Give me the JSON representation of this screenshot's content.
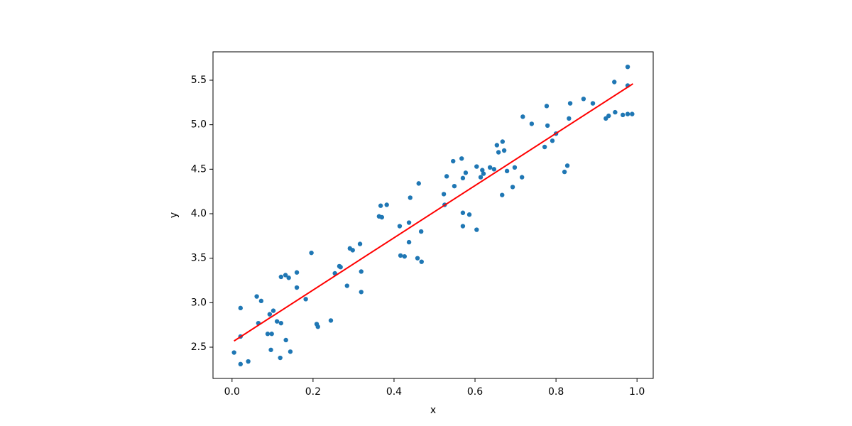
{
  "chart_data": {
    "type": "scatter",
    "x_label": "x",
    "y_label": "y",
    "xlim": [
      -0.047,
      1.04
    ],
    "ylim": [
      2.149,
      5.819
    ],
    "xticks": [
      {
        "value": 0,
        "label": "0.0"
      },
      {
        "value": 0.2,
        "label": "0.2"
      },
      {
        "value": 0.4,
        "label": "0.4"
      },
      {
        "value": 0.6,
        "label": "0.6"
      },
      {
        "value": 0.8,
        "label": "0.8"
      },
      {
        "value": 1,
        "label": "1.0"
      }
    ],
    "yticks": [
      2.5,
      {
        "value": 3,
        "label": "3.0"
      },
      3.5,
      {
        "value": 4,
        "label": "4.0"
      },
      4.5,
      {
        "value": 5,
        "label": "5.0"
      },
      5.5
    ],
    "series": [
      {
        "type": "scatter",
        "color": "#1f77b4",
        "x": [
          0.005,
          0.021,
          0.04,
          0.021,
          0.021,
          0.061,
          0.072,
          0.065,
          0.088,
          0.098,
          0.093,
          0.102,
          0.096,
          0.111,
          0.121,
          0.119,
          0.133,
          0.144,
          0.121,
          0.132,
          0.14,
          0.16,
          0.16,
          0.182,
          0.196,
          0.209,
          0.212,
          0.244,
          0.254,
          0.265,
          0.268,
          0.284,
          0.291,
          0.298,
          0.316,
          0.319,
          0.319,
          0.363,
          0.37,
          0.367,
          0.382,
          0.414,
          0.416,
          0.426,
          0.437,
          0.437,
          0.44,
          0.458,
          0.461,
          0.468,
          0.467,
          0.523,
          0.525,
          0.53,
          0.546,
          0.549,
          0.567,
          0.57,
          0.57,
          0.57,
          0.577,
          0.586,
          0.604,
          0.604,
          0.614,
          0.618,
          0.621,
          0.637,
          0.647,
          0.654,
          0.658,
          0.668,
          0.672,
          0.667,
          0.679,
          0.693,
          0.698,
          0.716,
          0.718,
          0.74,
          0.772,
          0.777,
          0.779,
          0.791,
          0.8,
          0.821,
          0.828,
          0.832,
          0.835,
          0.868,
          0.891,
          0.923,
          0.93,
          0.944,
          0.946,
          0.965,
          0.977,
          0.988,
          0.977,
          0.977
        ],
        "values": [
          2.44,
          2.31,
          2.34,
          2.62,
          2.94,
          3.07,
          3.02,
          2.77,
          2.65,
          2.65,
          2.87,
          2.91,
          2.47,
          2.79,
          2.77,
          2.38,
          2.58,
          2.45,
          3.29,
          3.31,
          3.28,
          3.34,
          3.17,
          3.04,
          3.56,
          2.76,
          2.73,
          2.8,
          3.33,
          3.41,
          3.4,
          3.19,
          3.61,
          3.59,
          3.66,
          3.35,
          3.12,
          3.97,
          3.96,
          4.09,
          4.1,
          3.86,
          3.53,
          3.52,
          3.9,
          3.68,
          4.18,
          3.5,
          4.34,
          3.46,
          3.8,
          4.22,
          4.1,
          4.42,
          4.59,
          4.31,
          4.62,
          4.01,
          3.86,
          4.4,
          4.46,
          3.99,
          3.82,
          4.53,
          4.41,
          4.49,
          4.45,
          4.52,
          4.5,
          4.77,
          4.69,
          4.81,
          4.71,
          4.21,
          4.48,
          4.3,
          4.52,
          4.41,
          5.09,
          5.01,
          4.75,
          5.21,
          4.99,
          4.82,
          4.9,
          4.47,
          4.54,
          5.07,
          5.24,
          5.29,
          5.24,
          5.07,
          5.1,
          5.48,
          5.14,
          5.11,
          5.12,
          5.12,
          5.65,
          5.44
        ]
      },
      {
        "type": "line",
        "color": "#ff0000",
        "x": [
          0.005,
          0.99
        ],
        "values": [
          2.57,
          5.46
        ]
      }
    ]
  }
}
